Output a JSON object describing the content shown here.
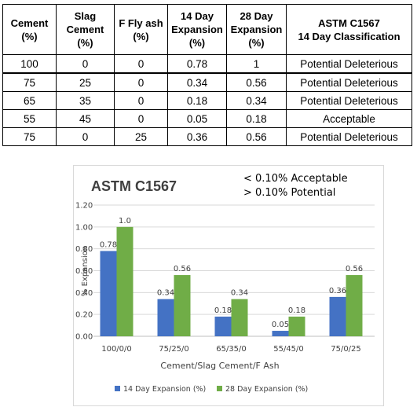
{
  "table": {
    "headers": [
      [
        "Cement",
        "(%)"
      ],
      [
        "Slag",
        "Cement",
        "(%)"
      ],
      [
        "F Fly ash",
        "(%)"
      ],
      [
        "14 Day",
        "Expansion",
        "(%)"
      ],
      [
        "28 Day",
        "Expansion",
        "(%)"
      ],
      [
        "ASTM C1567",
        "14 Day Classification"
      ]
    ],
    "rows": [
      [
        "100",
        "0",
        "0",
        "0.78",
        "1",
        "Potential Deleterious"
      ],
      [
        "75",
        "25",
        "0",
        "0.34",
        "0.56",
        "Potential Deleterious"
      ],
      [
        "65",
        "35",
        "0",
        "0.18",
        "0.34",
        "Potential Deleterious"
      ],
      [
        "55",
        "45",
        "0",
        "0.05",
        "0.18",
        "Acceptable"
      ],
      [
        "75",
        "0",
        "25",
        "0.36",
        "0.56",
        "Potential Deleterious"
      ]
    ]
  },
  "chart_data": {
    "type": "bar",
    "title": "ASTM C1567",
    "annotations": [
      "< 0.10% Acceptable",
      "> 0.10% Potential"
    ],
    "xlabel": "Cement/Slag Cement/F Ash",
    "ylabel": "% Expansion",
    "categories": [
      "100/0/0",
      "75/25/0",
      "65/35/0",
      "55/45/0",
      "75/0/25"
    ],
    "ylim": [
      0,
      1.2
    ],
    "yticks": [
      "0.00",
      "0.20",
      "0.40",
      "0.60",
      "0.80",
      "1.00",
      "1.20"
    ],
    "grid": true,
    "legend_position": "bottom",
    "series": [
      {
        "name": "14 Day Expansion (%)",
        "color": "#4472c4",
        "values": [
          0.78,
          0.34,
          0.18,
          0.05,
          0.36
        ],
        "labels": [
          "0.78",
          "0.34",
          "0.18",
          "0.05",
          "0.36"
        ]
      },
      {
        "name": "28 Day Expansion (%)",
        "color": "#70ad47",
        "values": [
          1.0,
          0.56,
          0.34,
          0.18,
          0.56
        ],
        "labels": [
          "1.0",
          "0.56",
          "0.34",
          "0.18",
          "0.56"
        ]
      }
    ]
  }
}
